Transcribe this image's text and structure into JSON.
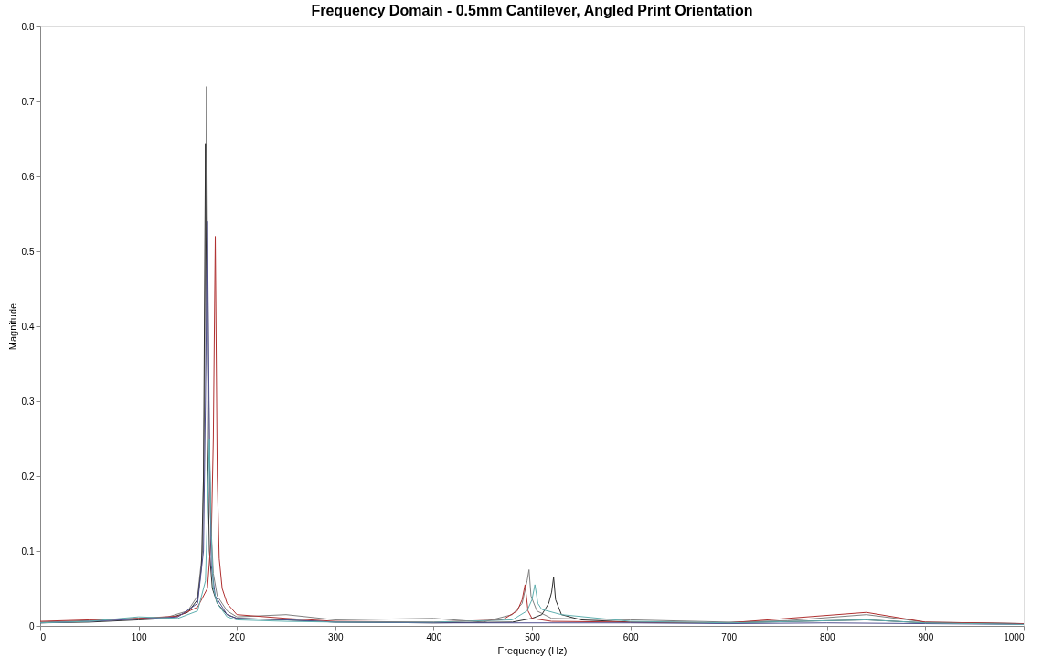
{
  "chart_data": {
    "type": "line",
    "title": "Frequency Domain - 0.5mm Cantilever, Angled Print Orientation",
    "xlabel": "Frequency (Hz)",
    "ylabel": "Magnitude",
    "xlim": [
      0,
      1000
    ],
    "ylim": [
      0,
      0.8
    ],
    "xticks": [
      0,
      100,
      200,
      300,
      400,
      500,
      600,
      700,
      800,
      900,
      1000
    ],
    "yticks": [
      0,
      0.1,
      0.2,
      0.3,
      0.4,
      0.5,
      0.6,
      0.7,
      0.8
    ],
    "grid": false,
    "legend": false,
    "line_style": "solid",
    "marker": "none",
    "series": [
      {
        "color": "#808080",
        "x": [
          0,
          50,
          100,
          130,
          150,
          160,
          165,
          167,
          169,
          171,
          173,
          176,
          180,
          190,
          200,
          250,
          300,
          400,
          450,
          480,
          490,
          495,
          497,
          499,
          505,
          520,
          600,
          700,
          760,
          840,
          900,
          1000
        ],
        "values": [
          0.005,
          0.007,
          0.01,
          0.012,
          0.02,
          0.04,
          0.1,
          0.3,
          0.72,
          0.35,
          0.15,
          0.07,
          0.04,
          0.02,
          0.012,
          0.015,
          0.008,
          0.01,
          0.005,
          0.015,
          0.03,
          0.06,
          0.075,
          0.04,
          0.02,
          0.01,
          0.008,
          0.005,
          0.007,
          0.015,
          0.005,
          0.003
        ]
      },
      {
        "color": "#303030",
        "x": [
          0,
          50,
          100,
          130,
          150,
          160,
          164,
          166,
          168,
          170,
          172,
          175,
          180,
          190,
          200,
          250,
          300,
          400,
          480,
          500,
          510,
          517,
          520,
          522,
          524,
          530,
          550,
          600,
          700,
          840,
          900,
          1000
        ],
        "values": [
          0.004,
          0.005,
          0.008,
          0.01,
          0.018,
          0.035,
          0.08,
          0.2,
          0.643,
          0.25,
          0.1,
          0.05,
          0.03,
          0.015,
          0.01,
          0.008,
          0.005,
          0.004,
          0.005,
          0.01,
          0.015,
          0.03,
          0.045,
          0.065,
          0.035,
          0.015,
          0.008,
          0.005,
          0.004,
          0.008,
          0.004,
          0.003
        ]
      },
      {
        "color": "#b03030",
        "x": [
          0,
          50,
          100,
          140,
          160,
          170,
          174,
          176,
          178,
          180,
          182,
          185,
          190,
          200,
          250,
          300,
          400,
          470,
          485,
          490,
          493,
          496,
          500,
          520,
          600,
          700,
          840,
          900,
          1000
        ],
        "values": [
          0.006,
          0.008,
          0.01,
          0.013,
          0.025,
          0.05,
          0.12,
          0.25,
          0.52,
          0.2,
          0.09,
          0.05,
          0.03,
          0.015,
          0.01,
          0.006,
          0.005,
          0.008,
          0.02,
          0.035,
          0.055,
          0.02,
          0.01,
          0.006,
          0.005,
          0.004,
          0.018,
          0.005,
          0.003
        ]
      },
      {
        "color": "#505090",
        "x": [
          0,
          50,
          100,
          140,
          160,
          166,
          168,
          170,
          172,
          174,
          178,
          190,
          200,
          250,
          300,
          400,
          500,
          600,
          700,
          800,
          900,
          1000
        ],
        "values": [
          0.004,
          0.006,
          0.009,
          0.012,
          0.03,
          0.1,
          0.3,
          0.54,
          0.25,
          0.08,
          0.04,
          0.015,
          0.01,
          0.008,
          0.005,
          0.004,
          0.004,
          0.004,
          0.003,
          0.004,
          0.003,
          0.002
        ]
      },
      {
        "color": "#60b0b0",
        "x": [
          0,
          50,
          100,
          140,
          160,
          168,
          170,
          172,
          174,
          176,
          180,
          190,
          200,
          250,
          300,
          400,
          480,
          495,
          500,
          503,
          506,
          510,
          530,
          600,
          700,
          840,
          900,
          1000
        ],
        "values": [
          0.004,
          0.006,
          0.012,
          0.01,
          0.02,
          0.06,
          0.15,
          0.25,
          0.12,
          0.05,
          0.03,
          0.012,
          0.008,
          0.006,
          0.005,
          0.005,
          0.008,
          0.02,
          0.035,
          0.055,
          0.03,
          0.022,
          0.015,
          0.006,
          0.004,
          0.008,
          0.004,
          0.002
        ]
      }
    ]
  }
}
